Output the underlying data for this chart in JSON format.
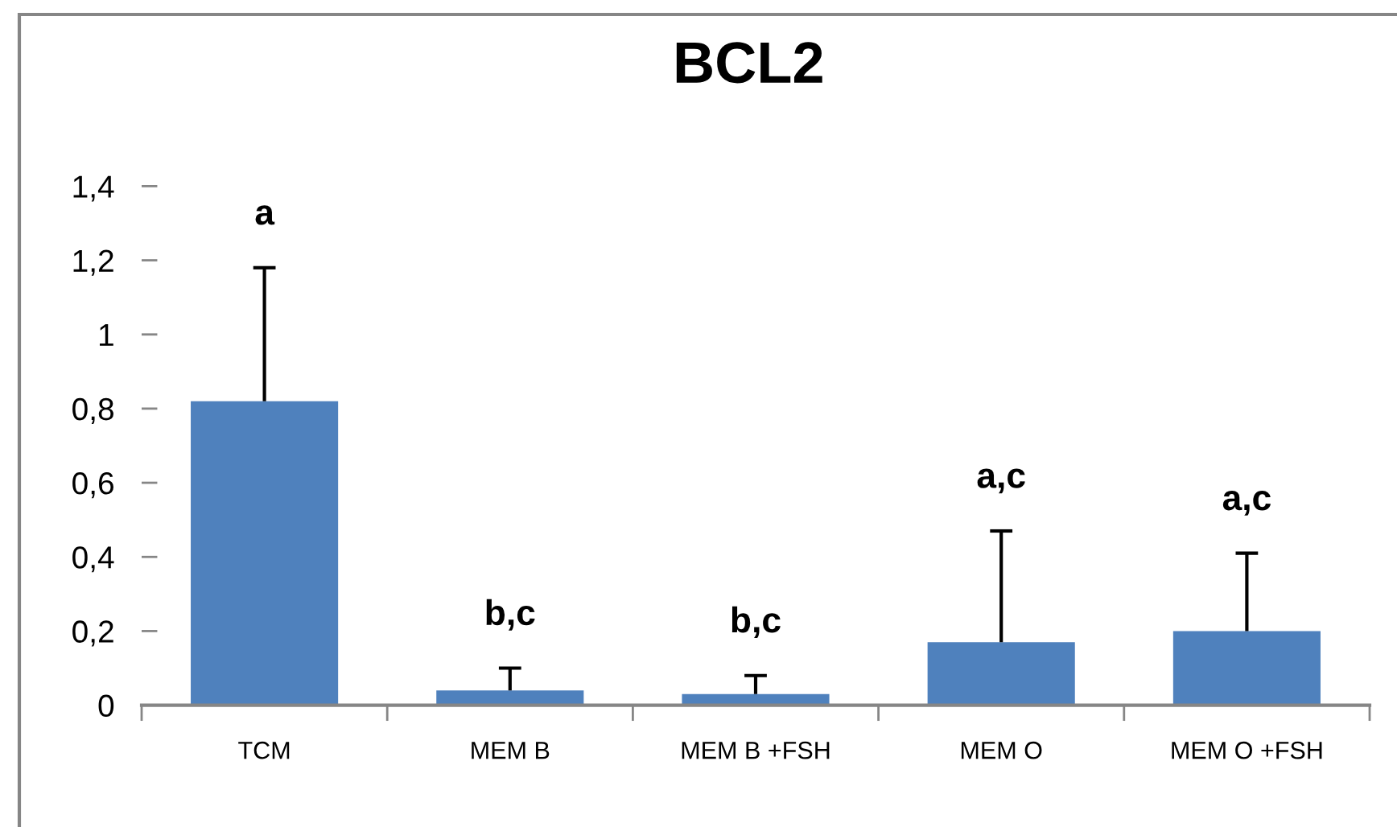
{
  "chart_data": {
    "type": "bar",
    "title": "BCL2",
    "categories": [
      "TCM",
      "MEM B",
      "MEM B +FSH",
      "MEM O",
      "MEM O +FSH"
    ],
    "values": [
      0.82,
      0.04,
      0.03,
      0.17,
      0.2
    ],
    "errors": [
      [
        0.82,
        1.18
      ],
      [
        0.04,
        0.1
      ],
      [
        0.03,
        0.08
      ],
      [
        0.17,
        0.47
      ],
      [
        0.2,
        0.41
      ]
    ],
    "color": "#4f81bd",
    "ylim": [
      0,
      1.4
    ],
    "yticks": [
      0,
      {
        "value": 0.2,
        "label": "0,2"
      },
      {
        "value": 0.4,
        "label": "0,4"
      },
      {
        "value": 0.6,
        "label": "0,6"
      },
      {
        "value": 0.8,
        "label": "0,8"
      },
      1,
      {
        "value": 1.2,
        "label": "1,2"
      },
      {
        "value": 1.4,
        "label": "1,4"
      }
    ],
    "annotations": [
      "a",
      "b,c",
      "b,c",
      "a,c",
      "a,c"
    ]
  }
}
